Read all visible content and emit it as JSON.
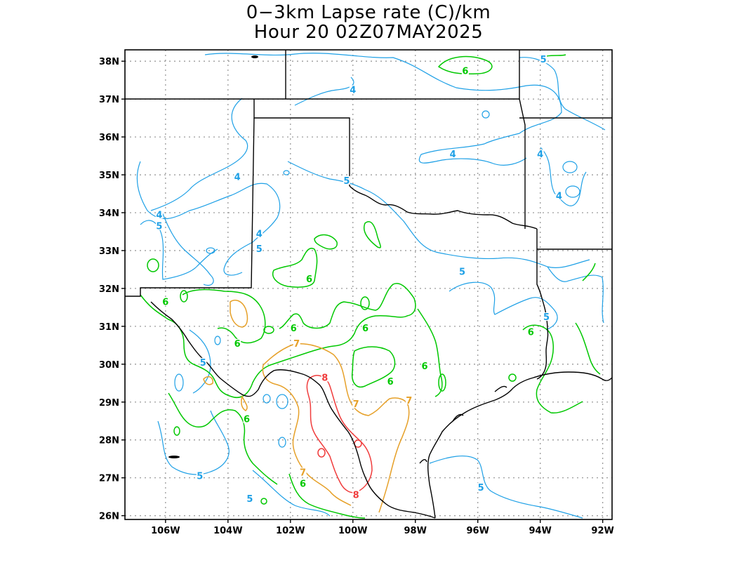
{
  "title": {
    "line1": "0−3km Lapse rate (C)/km",
    "line2": "Hour 20 02Z07MAY2025"
  },
  "axes": {
    "lon_ticks": [
      "106W",
      "104W",
      "102W",
      "100W",
      "98W",
      "96W",
      "94W",
      "92W"
    ],
    "lat_ticks": [
      "38N",
      "37N",
      "36N",
      "35N",
      "34N",
      "33N",
      "32N",
      "31N",
      "30N",
      "29N",
      "28N",
      "27N",
      "26N"
    ],
    "grid": "dotted",
    "lon_range": [
      -107.3,
      -91.7
    ],
    "lat_range": [
      25.9,
      38.3
    ]
  },
  "contour_levels": [
    {
      "level": "4",
      "color": "#1ea0e6"
    },
    {
      "level": "5",
      "color": "#1ea0e6"
    },
    {
      "level": "6",
      "color": "#00c800"
    },
    {
      "level": "7",
      "color": "#e6a028"
    },
    {
      "level": "8",
      "color": "#f03c3c"
    }
  ],
  "contour_labels": [
    {
      "text": "4",
      "level": "4",
      "lon": -100.0,
      "lat": 37.2
    },
    {
      "text": "4",
      "level": "4",
      "lon": -103.7,
      "lat": 34.9
    },
    {
      "text": "4",
      "level": "4",
      "lon": -106.2,
      "lat": 33.9
    },
    {
      "text": "4",
      "level": "4",
      "lon": -103.0,
      "lat": 33.4
    },
    {
      "text": "4",
      "level": "4",
      "lon": -96.8,
      "lat": 35.5
    },
    {
      "text": "4",
      "level": "4",
      "lon": -94.0,
      "lat": 35.5
    },
    {
      "text": "4",
      "level": "4",
      "lon": -93.4,
      "lat": 34.4
    },
    {
      "text": "5",
      "level": "5",
      "lon": -93.9,
      "lat": 38.0
    },
    {
      "text": "5",
      "level": "5",
      "lon": -106.2,
      "lat": 33.6
    },
    {
      "text": "5",
      "level": "5",
      "lon": -103.0,
      "lat": 33.0
    },
    {
      "text": "5",
      "level": "5",
      "lon": -100.2,
      "lat": 34.8
    },
    {
      "text": "5",
      "level": "5",
      "lon": -96.5,
      "lat": 32.4
    },
    {
      "text": "5",
      "level": "5",
      "lon": -93.8,
      "lat": 31.2
    },
    {
      "text": "5",
      "level": "5",
      "lon": -104.8,
      "lat": 30.0
    },
    {
      "text": "5",
      "level": "5",
      "lon": -104.9,
      "lat": 27.0
    },
    {
      "text": "5",
      "level": "5",
      "lon": -103.3,
      "lat": 26.4
    },
    {
      "text": "5",
      "level": "5",
      "lon": -95.9,
      "lat": 26.7
    },
    {
      "text": "6",
      "level": "6",
      "lon": -96.4,
      "lat": 37.7
    },
    {
      "text": "6",
      "level": "6",
      "lon": -106.0,
      "lat": 31.6
    },
    {
      "text": "6",
      "level": "6",
      "lon": -101.4,
      "lat": 32.2
    },
    {
      "text": "6",
      "level": "6",
      "lon": -101.9,
      "lat": 30.9
    },
    {
      "text": "6",
      "level": "6",
      "lon": -99.6,
      "lat": 30.9
    },
    {
      "text": "6",
      "level": "6",
      "lon": -103.7,
      "lat": 30.5
    },
    {
      "text": "6",
      "level": "6",
      "lon": -97.7,
      "lat": 29.9
    },
    {
      "text": "6",
      "level": "6",
      "lon": -98.8,
      "lat": 29.5
    },
    {
      "text": "6",
      "level": "6",
      "lon": -103.4,
      "lat": 28.5
    },
    {
      "text": "6",
      "level": "6",
      "lon": -94.3,
      "lat": 30.8
    },
    {
      "text": "6",
      "level": "6",
      "lon": -101.6,
      "lat": 26.8
    },
    {
      "text": "7",
      "level": "7",
      "lon": -101.8,
      "lat": 30.5
    },
    {
      "text": "7",
      "level": "7",
      "lon": -99.9,
      "lat": 28.9
    },
    {
      "text": "7",
      "level": "7",
      "lon": -98.2,
      "lat": 29.0
    },
    {
      "text": "7",
      "level": "7",
      "lon": -101.6,
      "lat": 27.1
    },
    {
      "text": "8",
      "level": "8",
      "lon": -100.9,
      "lat": 29.6
    },
    {
      "text": "8",
      "level": "8",
      "lon": -99.9,
      "lat": 26.5
    }
  ]
}
